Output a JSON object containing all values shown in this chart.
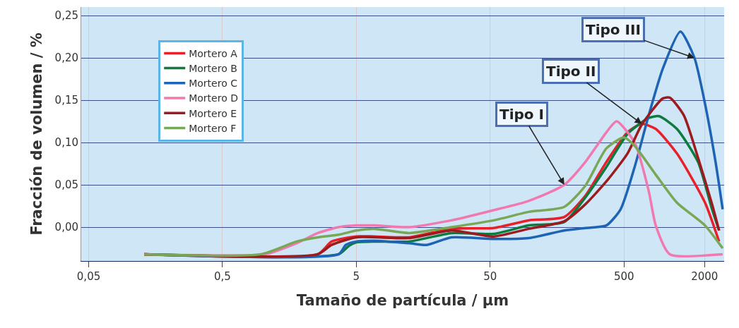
{
  "chart_data": {
    "type": "line",
    "xlabel": "Tamaño de partícula / µm",
    "ylabel": "Fracción de volumen / %",
    "log": "x",
    "grid": true,
    "legend": "top left",
    "line_style": "solid",
    "marker": "none",
    "xlim": [
      0.044,
      2800
    ],
    "xticks": [
      {
        "value": 0.05,
        "label": "0,05"
      },
      {
        "value": 0.5,
        "label": "0,5"
      },
      5,
      50,
      500,
      2000
    ],
    "ylim": [
      -0.04,
      0.26
    ],
    "yticks": [
      {
        "value": 0,
        "label": "0,00"
      },
      {
        "value": 0.05,
        "label": "0,05"
      },
      {
        "value": 0.1,
        "label": "0,10"
      },
      {
        "value": 0.15,
        "label": "0,15"
      },
      {
        "value": 0.2,
        "label": "0,20"
      },
      {
        "value": 0.25,
        "label": "0,25"
      }
    ],
    "series": [
      {
        "name": "Mortero A",
        "color": "#e8202a",
        "x": [
          0.13,
          2.57,
          3.27,
          5,
          6.8,
          12.4,
          25.7,
          53,
          97,
          179,
          257,
          369,
          531,
          678,
          863,
          1242,
          2013,
          2566
        ],
        "values": [
          -0.032,
          -0.032,
          -0.017,
          -0.011,
          -0.011,
          -0.012,
          -0.002,
          -0.001,
          0.008,
          0.012,
          0.037,
          0.077,
          0.112,
          0.122,
          0.116,
          0.087,
          0.029,
          -0.017
        ]
      },
      {
        "name": "Mortero B",
        "color": "#0d7a3e",
        "x": [
          0.13,
          3.69,
          4.4,
          5,
          6.8,
          12.4,
          25.7,
          53,
          97,
          179,
          257,
          369,
          531,
          764,
          916,
          1242,
          1786,
          2274,
          2566
        ],
        "values": [
          -0.032,
          -0.032,
          -0.022,
          -0.018,
          -0.017,
          -0.017,
          -0.007,
          -0.008,
          0.002,
          0.006,
          0.035,
          0.071,
          0.11,
          0.129,
          0.131,
          0.116,
          0.077,
          0.021,
          -0.004
        ]
      },
      {
        "name": "Mortero C",
        "color": "#1e64b4",
        "x": [
          0.13,
          3.69,
          4.17,
          5,
          6.8,
          12.4,
          16.8,
          25.7,
          53,
          97,
          179,
          257,
          369,
          471,
          600,
          764,
          973,
          1318,
          1679,
          2013,
          2415,
          2729
        ],
        "values": [
          -0.032,
          -0.032,
          -0.021,
          -0.017,
          -0.016,
          -0.019,
          -0.021,
          -0.012,
          -0.014,
          -0.013,
          -0.004,
          -0.001,
          0.002,
          0.021,
          0.071,
          0.132,
          0.187,
          0.231,
          0.2,
          0.146,
          0.077,
          0.021
        ]
      },
      {
        "name": "Mortero D",
        "color": "#f07ab0",
        "x": [
          0.13,
          1.04,
          1.79,
          2.57,
          3.69,
          5,
          6.8,
          12.4,
          25.7,
          53,
          97,
          179,
          257,
          369,
          440,
          600,
          764,
          863,
          1099,
          2729
        ],
        "values": [
          -0.032,
          -0.032,
          -0.019,
          -0.007,
          0,
          0.002,
          0.002,
          0,
          0.008,
          0.02,
          0.031,
          0.05,
          0.077,
          0.112,
          0.125,
          0.1,
          0.043,
          0.002,
          -0.032,
          -0.032
        ]
      },
      {
        "name": "Mortero E",
        "color": "#9b1b1e",
        "x": [
          0.13,
          2.57,
          3.27,
          5,
          12.4,
          25.7,
          53,
          97,
          179,
          257,
          369,
          531,
          678,
          973,
          1099,
          1400,
          1786,
          2274,
          2566
        ],
        "values": [
          -0.032,
          -0.032,
          -0.021,
          -0.012,
          -0.013,
          -0.004,
          -0.011,
          -0.002,
          0.007,
          0.027,
          0.054,
          0.087,
          0.121,
          0.152,
          0.153,
          0.132,
          0.082,
          0.027,
          -0.004
        ]
      },
      {
        "name": "Mortero F",
        "color": "#78a856",
        "x": [
          0.13,
          0.97,
          1.79,
          2.57,
          3.69,
          5,
          6.8,
          12.4,
          25.7,
          53,
          97,
          179,
          257,
          369,
          500,
          600,
          863,
          1242,
          2013,
          2729
        ],
        "values": [
          -0.032,
          -0.032,
          -0.017,
          -0.012,
          -0.009,
          -0.004,
          -0.002,
          -0.007,
          0,
          0.008,
          0.018,
          0.024,
          0.049,
          0.093,
          0.106,
          0.096,
          0.062,
          0.029,
          0.002,
          -0.025
        ]
      }
    ],
    "annotations": [
      {
        "text": "Tipo I",
        "x": 179,
        "y": 0.05
      },
      {
        "text": "Tipo II",
        "x": 678,
        "y": 0.122
      },
      {
        "text": "Tipo III",
        "x": 1679,
        "y": 0.2
      }
    ]
  }
}
